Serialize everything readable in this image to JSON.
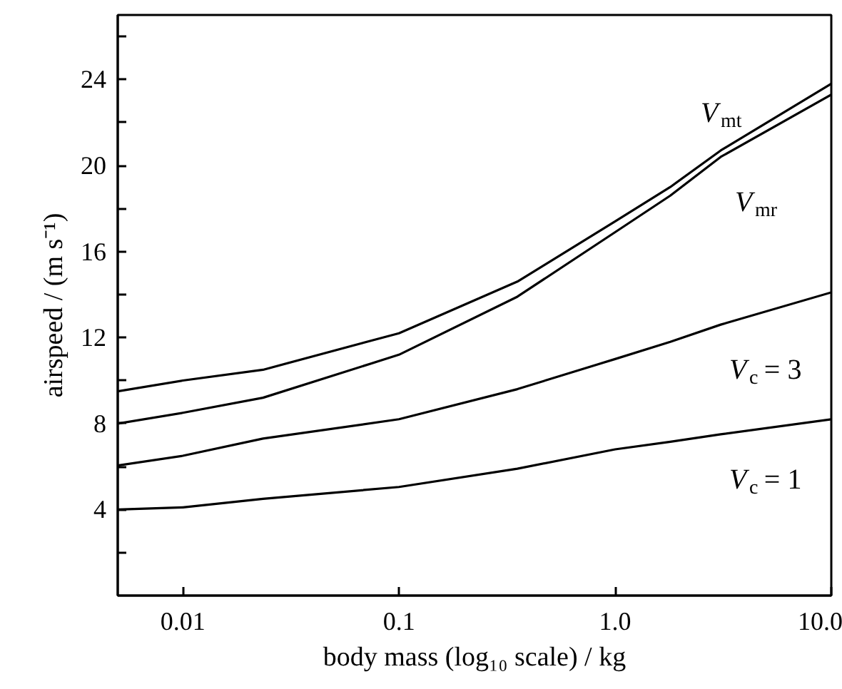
{
  "chart_data": {
    "type": "line",
    "xlabel": "body mass (log₁₀ scale) / kg",
    "ylabel": "airspeed / (m s⁻¹)",
    "log": "x",
    "x": [
      0.005,
      0.01,
      0.0235,
      0.1,
      0.353,
      1.0,
      1.8,
      3.08,
      10.0
    ],
    "xlim": [
      0.005,
      10.0
    ],
    "xticks": [
      {
        "value": 0.01,
        "label": "0.01"
      },
      {
        "value": 0.1,
        "label": "0.1"
      },
      {
        "value": 1.0,
        "label": "1.0"
      },
      {
        "value": 10.0,
        "label": "10.0"
      }
    ],
    "ylim": [
      0,
      27
    ],
    "yticks": [
      {
        "value": 2,
        "label": null
      },
      4,
      {
        "value": 6,
        "label": null
      },
      8,
      {
        "value": 10,
        "label": null
      },
      12,
      {
        "value": 14,
        "label": null
      },
      16,
      {
        "value": 18,
        "label": null
      },
      20,
      {
        "value": 22,
        "label": null
      },
      24,
      {
        "value": 26,
        "label": null
      }
    ],
    "series": [
      {
        "name": "V$_{mt}$",
        "color": "#000000",
        "values": [
          9.5,
          10.0,
          10.5,
          12.2,
          14.6,
          17.4,
          19.0,
          20.7,
          23.8
        ]
      },
      {
        "name": "V$_{mr}$",
        "color": "#000000",
        "values": [
          8.0,
          8.5,
          9.2,
          11.2,
          13.9,
          16.9,
          18.6,
          20.4,
          23.3
        ]
      },
      {
        "name": "V$_{c}$ = 3",
        "color": "#000000",
        "values": [
          6.05,
          6.5,
          7.3,
          8.2,
          9.6,
          11.0,
          11.8,
          12.6,
          14.1
        ]
      },
      {
        "name": "V$_{c}$ = 1",
        "color": "#000000",
        "values": [
          4.0,
          4.1,
          4.5,
          5.05,
          5.9,
          6.8,
          7.15,
          7.5,
          8.2
        ]
      }
    ]
  }
}
